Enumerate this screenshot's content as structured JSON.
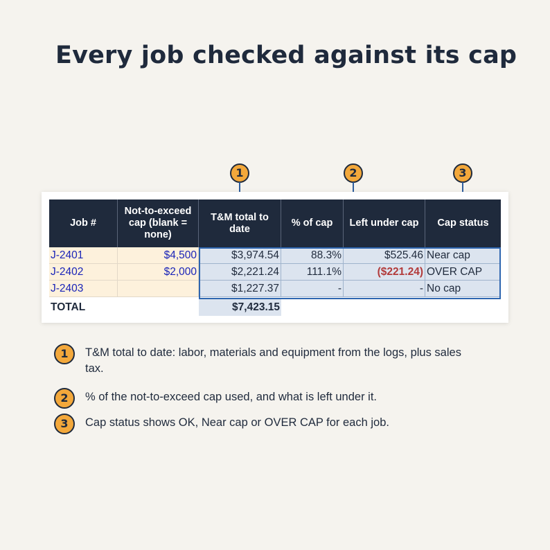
{
  "title": "Every job checked against its cap",
  "markers": [
    "1",
    "2",
    "3"
  ],
  "table": {
    "headers": [
      "Job #",
      "Not-to-exceed cap (blank = none)",
      "T&M total to date",
      "% of cap",
      "Left under cap",
      "Cap status"
    ],
    "rows": [
      {
        "job": "J-2401",
        "cap": "$4,500",
        "tm": "$3,974.54",
        "pct": "88.3%",
        "left": "$525.46",
        "status": "Near cap"
      },
      {
        "job": "J-2402",
        "cap": "$2,000",
        "tm": "$2,221.24",
        "pct": "111.1%",
        "left": "($221.24)",
        "status": "OVER CAP"
      },
      {
        "job": "J-2403",
        "cap": "",
        "tm": "$1,227.37",
        "pct": "-",
        "left": "-",
        "status": "No cap"
      }
    ],
    "total_label": "TOTAL",
    "total_value": "$7,423.15"
  },
  "notes": [
    {
      "num": "1",
      "text": "T&M total to date: labor, materials and equipment from the logs, plus sales tax."
    },
    {
      "num": "2",
      "text": "% of the not-to-exceed cap used, and what is left under it."
    },
    {
      "num": "3",
      "text": "Cap status shows OK, Near cap or OVER CAP for each job."
    }
  ],
  "colors": {
    "background": "#f5f3ee",
    "header": "#1f2a3c",
    "accent": "#f3a83b",
    "input_fill": "#fdf1dc",
    "input_text": "#1a24b8",
    "calc_fill": "#dce4ef",
    "calc_border": "#2e66b0",
    "negative": "#b23a3a"
  }
}
